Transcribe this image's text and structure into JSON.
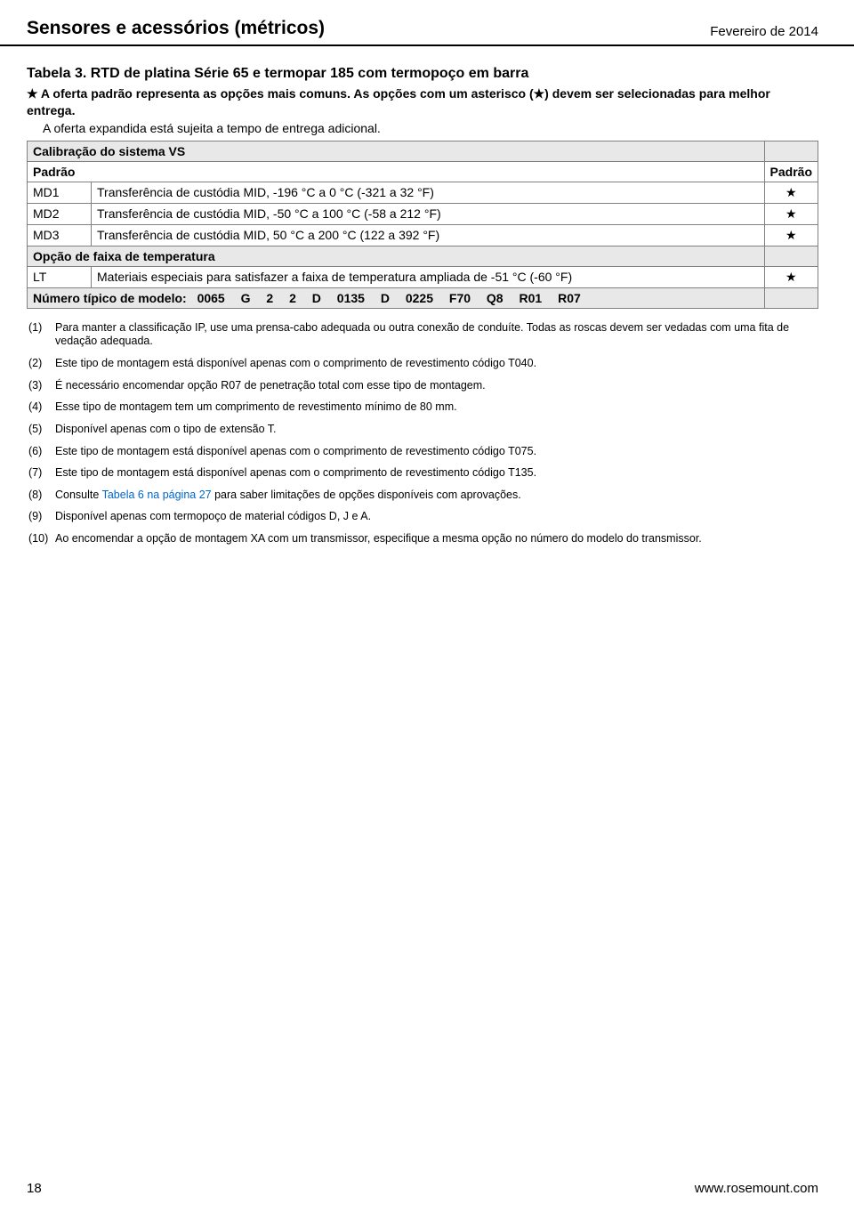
{
  "header": {
    "left": "Sensores e acessórios (métricos)",
    "right": "Fevereiro de 2014"
  },
  "table": {
    "title": "Tabela 3. RTD de platina Série 65 e termopar 185 com termopoço em barra",
    "intro_bold": "★ A oferta padrão representa as opções mais comuns. As opções com um asterisco (★) devem ser selecionadas para melhor entrega.",
    "intro_plain": "A oferta expandida está sujeita a tempo de entrega adicional.",
    "sec_calib": "Calibração do sistema VS",
    "padrao_left": "Padrão",
    "padrao_right": "Padrão",
    "rows": {
      "md1_code": "MD1",
      "md1_desc": "Transferência de custódia MID, -196 °C a 0 °C (-321 a 32 °F)",
      "md2_code": "MD2",
      "md2_desc": "Transferência de custódia MID, -50 °C a 100 °C (-58 a 212 °F)",
      "md3_code": "MD3",
      "md3_desc": "Transferência de custódia MID, 50 °C a 200 °C (122 a 392 °F)"
    },
    "sec_temp": "Opção de faixa de temperatura",
    "lt_code": "LT",
    "lt_desc": "Materiais especiais para satisfazer a faixa de temperatura ampliada de -51 °C (-60 °F)",
    "model_label": "Número típico de modelo:",
    "model_codes": [
      "0065",
      "G",
      "2",
      "2",
      "D",
      "0135",
      "D",
      "0225",
      "F70",
      "Q8",
      "R01",
      "R07"
    ],
    "star": "★"
  },
  "footnotes": [
    {
      "n": "(1)",
      "t": "Para manter a classificação IP, use uma prensa-cabo adequada ou outra conexão de conduíte. Todas as roscas devem ser vedadas com uma fita de vedação adequada."
    },
    {
      "n": "(2)",
      "t": "Este tipo de montagem está disponível apenas com o comprimento de revestimento código T040."
    },
    {
      "n": "(3)",
      "t": "É necessário encomendar opção R07 de penetração total com esse tipo de montagem."
    },
    {
      "n": "(4)",
      "t": "Esse tipo de montagem tem um comprimento de revestimento mínimo de 80 mm."
    },
    {
      "n": "(5)",
      "t": "Disponível apenas com o tipo de extensão T."
    },
    {
      "n": "(6)",
      "t": "Este tipo de montagem está disponível apenas com o comprimento de revestimento código T075."
    },
    {
      "n": "(7)",
      "t": "Este tipo de montagem está disponível apenas com o comprimento de revestimento código T135."
    },
    {
      "n": "(8)",
      "t_pre": "Consulte ",
      "link": "Tabela 6 na página 27",
      "t_post": " para saber limitações de opções disponíveis com aprovações."
    },
    {
      "n": "(9)",
      "t": "Disponível apenas com termopoço de material códigos D, J e A."
    },
    {
      "n": "(10)",
      "t": "Ao encomendar a opção de montagem XA com um transmissor, especifique a mesma opção no número do modelo do transmissor."
    }
  ],
  "footer": {
    "page": "18",
    "url": "www.rosemount.com"
  }
}
